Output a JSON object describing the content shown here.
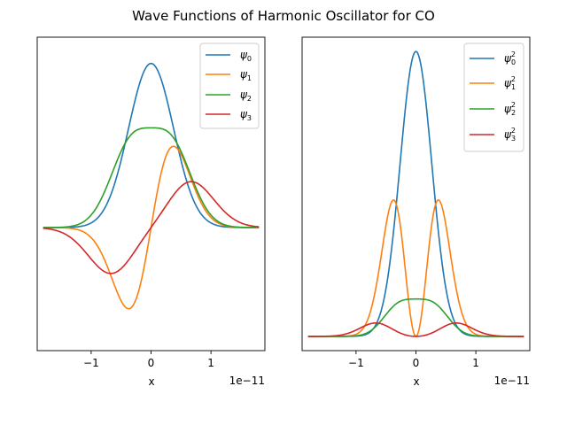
{
  "figure": {
    "title": "Wave Functions of Harmonic Oscillator for CO"
  },
  "chart_data": [
    {
      "type": "line",
      "xlabel": "x",
      "x_offset_label": "1e−11",
      "xlim": [
        -1.9,
        1.9
      ],
      "ylim": [
        -0.75,
        1.16
      ],
      "yticks_visible": false,
      "xticks": [
        -1,
        0,
        1
      ],
      "xtick_labels": [
        "−1",
        "0",
        "1"
      ],
      "grid": false,
      "legend_position": "top-right",
      "series": [
        {
          "name": "ψ0",
          "color": "#1f77b4",
          "function": "psi0"
        },
        {
          "name": "ψ1",
          "color": "#ff7f0e",
          "function": "psi1"
        },
        {
          "name": "ψ2",
          "color": "#2ca02c",
          "function": "psi2"
        },
        {
          "name": "ψ3",
          "color": "#d62728",
          "function": "psi3"
        }
      ]
    },
    {
      "type": "line",
      "xlabel": "x",
      "x_offset_label": "1e−11",
      "xlim": [
        -1.9,
        1.9
      ],
      "ylim": [
        -0.05,
        1.05
      ],
      "yticks_visible": false,
      "xticks": [
        -1,
        0,
        1
      ],
      "xtick_labels": [
        "−1",
        "0",
        "1"
      ],
      "grid": false,
      "legend_position": "top-right",
      "series": [
        {
          "name": "ψ0²",
          "color": "#1f77b4",
          "function": "psi0_sq"
        },
        {
          "name": "ψ1²",
          "color": "#ff7f0e",
          "function": "psi1_sq"
        },
        {
          "name": "ψ2²",
          "color": "#2ca02c",
          "function": "psi2_sq"
        },
        {
          "name": "ψ3²",
          "color": "#d62728",
          "function": "psi3_sq"
        }
      ]
    }
  ]
}
